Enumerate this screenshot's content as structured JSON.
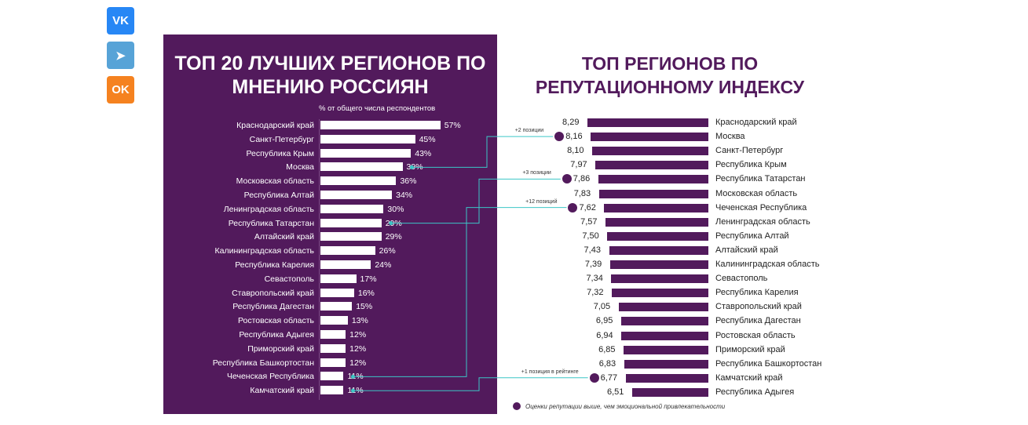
{
  "share": {
    "vk": "VK",
    "telegram": "telegram",
    "ok": "OK"
  },
  "colors": {
    "purple": "#521a5c",
    "cyan": "#3cc6c6",
    "vk": "#2787f5",
    "telegram": "#57a3d7",
    "ok": "#f58220"
  },
  "chart_data": [
    {
      "type": "bar",
      "title": "ТОП 20 ЛУЧШИХ РЕГИОНОВ ПО МНЕНИЮ РОССИЯН",
      "subtitle": "% от общего числа респондентов",
      "categories": [
        "Краснодарский край",
        "Санкт-Петербург",
        "Республика Крым",
        "Москва",
        "Московская область",
        "Республика Алтай",
        "Ленинградская область",
        "Республика Татарстан",
        "Алтайский край",
        "Калининградская область",
        "Республика Карелия",
        "Севастополь",
        "Ставропольский край",
        "Республика Дагестан",
        "Ростовская область",
        "Республика Адыгея",
        "Приморский край",
        "Республика Башкортостан",
        "Чеченская Республика",
        "Камчатский край"
      ],
      "values": [
        57,
        45,
        43,
        39,
        36,
        34,
        30,
        29,
        29,
        26,
        24,
        17,
        16,
        15,
        13,
        12,
        12,
        12,
        11,
        11
      ],
      "labels": [
        "57%",
        "45%",
        "43%",
        "39%",
        "36%",
        "34%",
        "30%",
        "29%",
        "29%",
        "26%",
        "24%",
        "17%",
        "16%",
        "15%",
        "13%",
        "12%",
        "12%",
        "12%",
        "11%",
        "11%"
      ]
    },
    {
      "type": "bar",
      "title": "ТОП РЕГИОНОВ ПО РЕПУТАЦИОННОМУ ИНДЕКСУ",
      "categories": [
        "Краснодарский край",
        "Москва",
        "Санкт-Петербург",
        "Республика Крым",
        "Республика Татарстан",
        "Московская область",
        "Чеченская Республика",
        "Ленинградская область",
        "Республика Алтай",
        "Алтайский край",
        "Калининградская область",
        "Севастополь",
        "Республика Карелия",
        "Ставропольский край",
        "Республика Дагестан",
        "Ростовская область",
        "Приморский край",
        "Республика Башкортостан",
        "Камчатский край",
        "Республика Адыгея"
      ],
      "values": [
        8.29,
        8.16,
        8.1,
        7.97,
        7.86,
        7.83,
        7.62,
        7.57,
        7.5,
        7.43,
        7.39,
        7.34,
        7.32,
        7.05,
        6.95,
        6.94,
        6.85,
        6.83,
        6.77,
        6.51
      ],
      "labels": [
        "8,29",
        "8,16",
        "8,10",
        "7,97",
        "7,86",
        "7,83",
        "7,62",
        "7,57",
        "7,50",
        "7,43",
        "7,39",
        "7,34",
        "7,32",
        "7,05",
        "6,95",
        "6,94",
        "6,85",
        "6,83",
        "6,77",
        "6,51"
      ],
      "highlighted": [
        1,
        4,
        6,
        18
      ],
      "annotations": [
        {
          "from": 3,
          "to": 1,
          "text": "+2 позиции"
        },
        {
          "from": 7,
          "to": 4,
          "text": "+3 позиции"
        },
        {
          "from": 18,
          "to": 6,
          "text": "+12 позиций"
        },
        {
          "from": 19,
          "to": 18,
          "text": "+1 позиция в рейтинге"
        }
      ],
      "legend": "Оценки репутации выше, чем эмоциональной привлекательности"
    }
  ]
}
